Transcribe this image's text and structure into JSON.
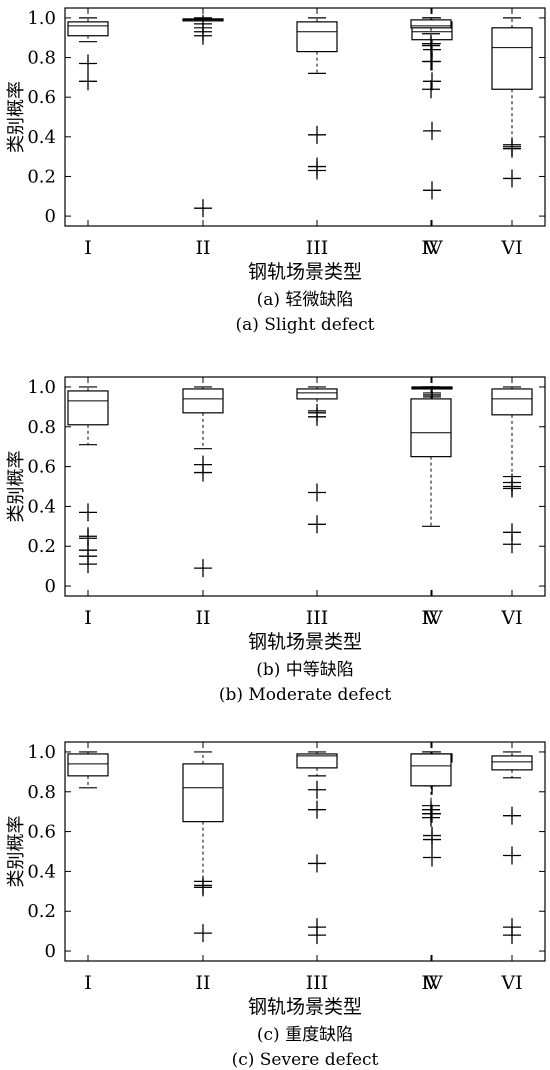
{
  "chart_data": [
    {
      "type": "box",
      "xlabel": "钢轨场景类型",
      "ylabel": "类别概率",
      "caption_cn": "(a) 轻微缺陷",
      "caption_en": "(a) Slight defect",
      "ylim": [
        -0.05,
        1.05
      ],
      "yticks": [
        "0",
        "0.2",
        "0.4",
        "0.6",
        "0.8",
        "1.0"
      ],
      "categories": [
        "I",
        "II",
        "III",
        "IV",
        "V",
        "VI"
      ],
      "boxes": [
        {
          "min": 0.88,
          "q1": 0.91,
          "median": 0.96,
          "q3": 0.98,
          "max": 1.0,
          "outliers": [
            0.77,
            0.68
          ]
        },
        {
          "min": 0.95,
          "q1": 0.985,
          "median": 0.99,
          "q3": 0.995,
          "max": 1.0,
          "outliers": [
            0.97,
            0.93,
            0.91,
            0.04
          ]
        },
        {
          "min": 0.72,
          "q1": 0.83,
          "median": 0.93,
          "q3": 0.98,
          "max": 1.0,
          "outliers": [
            0.41,
            0.25,
            0.23
          ]
        },
        {
          "min": 0.87,
          "q1": 0.89,
          "median": 0.93,
          "q3": 0.98,
          "max": 1.0,
          "outliers": [
            0.84,
            0.78,
            0.68,
            0.43,
            0.13
          ]
        },
        {
          "min": 0.92,
          "q1": 0.95,
          "median": 0.96,
          "q3": 0.99,
          "max": 1.0,
          "outliers": [
            0.87,
            0.86,
            0.78,
            0.64
          ]
        },
        {
          "min": 0.36,
          "q1": 0.64,
          "median": 0.85,
          "q3": 0.95,
          "max": 1.0,
          "outliers": [
            0.35,
            0.34,
            0.19
          ]
        }
      ]
    },
    {
      "type": "box",
      "xlabel": "钢轨场景类型",
      "ylabel": "类别概率",
      "caption_cn": "(b) 中等缺陷",
      "caption_en": "(b) Moderate defect",
      "ylim": [
        -0.05,
        1.05
      ],
      "yticks": [
        "0",
        "0.2",
        "0.4",
        "0.6",
        "0.8",
        "1.0"
      ],
      "categories": [
        "I",
        "II",
        "III",
        "IV",
        "V",
        "VI"
      ],
      "boxes": [
        {
          "min": 0.71,
          "q1": 0.81,
          "median": 0.93,
          "q3": 0.98,
          "max": 1.0,
          "outliers": [
            0.37,
            0.25,
            0.24,
            0.18,
            0.15,
            0.11
          ]
        },
        {
          "min": 0.69,
          "q1": 0.87,
          "median": 0.94,
          "q3": 0.99,
          "max": 1.0,
          "outliers": [
            0.61,
            0.57,
            0.09
          ]
        },
        {
          "min": 0.88,
          "q1": 0.94,
          "median": 0.97,
          "q3": 0.99,
          "max": 1.0,
          "outliers": [
            0.87,
            0.85,
            0.47,
            0.31
          ]
        },
        {
          "min": 0.97,
          "q1": 0.99,
          "median": 0.995,
          "q3": 1.0,
          "max": 1.0,
          "outliers": [
            0.96,
            0.95,
            0.93
          ]
        },
        {
          "min": 0.3,
          "q1": 0.65,
          "median": 0.77,
          "q3": 0.94,
          "max": 1.0,
          "outliers": []
        },
        {
          "min": 0.55,
          "q1": 0.86,
          "median": 0.94,
          "q3": 0.99,
          "max": 1.0,
          "outliers": [
            0.52,
            0.5,
            0.49,
            0.27,
            0.21
          ]
        }
      ]
    },
    {
      "type": "box",
      "xlabel": "钢轨场景类型",
      "ylabel": "类别概率",
      "caption_cn": "(c) 重度缺陷",
      "caption_en": "(c) Severe defect",
      "ylim": [
        -0.05,
        1.05
      ],
      "yticks": [
        "0",
        "0.2",
        "0.4",
        "0.6",
        "0.8",
        "1.0"
      ],
      "categories": [
        "I",
        "II",
        "III",
        "IV",
        "V",
        "VI"
      ],
      "boxes": [
        {
          "min": 0.82,
          "q1": 0.88,
          "median": 0.94,
          "q3": 0.99,
          "max": 1.0,
          "outliers": []
        },
        {
          "min": 0.35,
          "q1": 0.65,
          "median": 0.82,
          "q3": 0.94,
          "max": 1.0,
          "outliers": [
            0.33,
            0.32,
            0.09
          ]
        },
        {
          "min": 0.88,
          "q1": 0.92,
          "median": 0.98,
          "q3": 0.99,
          "max": 1.0,
          "outliers": [
            0.81,
            0.71,
            0.44,
            0.12,
            0.08
          ]
        },
        {
          "min": 0.9,
          "q1": 0.95,
          "median": 0.97,
          "q3": 0.99,
          "max": 1.0,
          "outliers": [
            0.87,
            0.85,
            0.83,
            0.69,
            0.58,
            0.56,
            0.47
          ]
        },
        {
          "min": 0.73,
          "q1": 0.83,
          "median": 0.93,
          "q3": 0.99,
          "max": 1.0,
          "outliers": [
            0.71,
            0.69,
            0.67
          ]
        },
        {
          "min": 0.87,
          "q1": 0.91,
          "median": 0.95,
          "q3": 0.98,
          "max": 1.0,
          "outliers": [
            0.68,
            0.48,
            0.12,
            0.08
          ]
        }
      ]
    }
  ]
}
